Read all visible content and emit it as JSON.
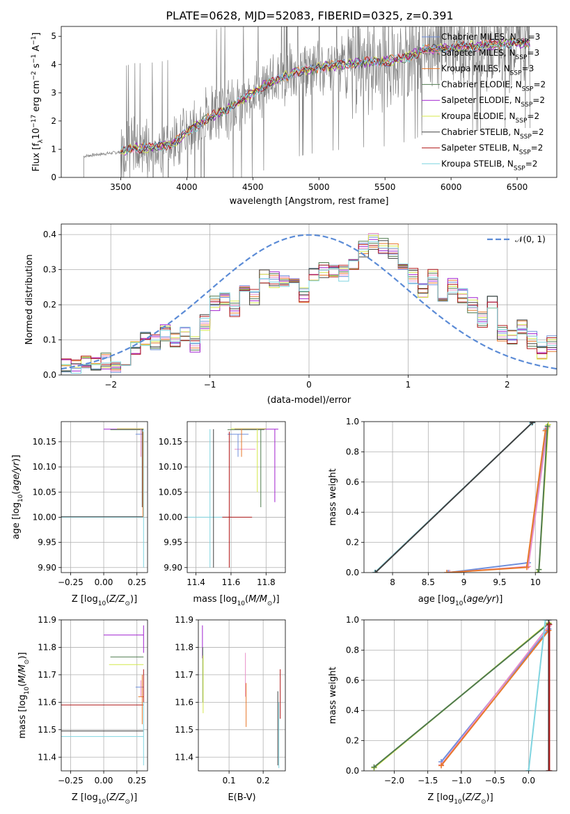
{
  "figure": {
    "title": "PLATE=0628, MJD=52083, FIBERID=0325, z=0.391"
  },
  "colors": {
    "Chabrier MILES": "#6f8fdc",
    "Salpeter MILES": "#e98fc8",
    "Kroupa MILES": "#e8782a",
    "Chabrier ELODIE": "#4f7a4f",
    "Salpeter ELODIE": "#a020d0",
    "Kroupa ELODIE": "#d4e84a",
    "Chabrier STELIB": "#404040",
    "Salpeter STELIB": "#b01818",
    "Kroupa STELIB": "#7fd4e0",
    "data": "#808080",
    "gaussian": "#5b8bd6",
    "grid": "#b0b0b0"
  },
  "chart_data": [
    {
      "id": "spectrum",
      "type": "line",
      "xlabel": "wavelength [Angstrom, rest frame]",
      "ylabel": "Flux [f_λ10^-17 erg cm^-2 s^-1 A^-1]",
      "xlim": [
        3050,
        6800
      ],
      "ylim": [
        0,
        5.35
      ],
      "xticks": [
        3500,
        4000,
        4500,
        5000,
        5500,
        6000,
        6500
      ],
      "yticks": [
        0,
        1,
        2,
        3,
        4,
        5
      ],
      "grid": false,
      "legend_position": "top-right",
      "legend": [
        {
          "name": "Chabrier MILES",
          "label": "Chabrier MILES, N",
          "sub": "SSP",
          "suffix": "=3"
        },
        {
          "name": "Salpeter MILES",
          "label": "Salpeter MILES, N",
          "sub": "SSP",
          "suffix": "=3"
        },
        {
          "name": "Kroupa MILES",
          "label": "Kroupa MILES, N",
          "sub": "SSP",
          "suffix": "=3"
        },
        {
          "name": "Chabrier ELODIE",
          "label": "Chabrier ELODIE, N",
          "sub": "SSP",
          "suffix": "=2"
        },
        {
          "name": "Salpeter ELODIE",
          "label": "Salpeter ELODIE, N",
          "sub": "SSP",
          "suffix": "=2"
        },
        {
          "name": "Kroupa ELODIE",
          "label": "Kroupa ELODIE, N",
          "sub": "SSP",
          "suffix": "=2"
        },
        {
          "name": "Chabrier STELIB",
          "label": "Chabrier STELIB, N",
          "sub": "SSP",
          "suffix": "=2"
        },
        {
          "name": "Salpeter STELIB",
          "label": "Salpeter STELIB, N",
          "sub": "SSP",
          "suffix": "=2"
        },
        {
          "name": "Kroupa STELIB",
          "label": "Kroupa STELIB, N",
          "sub": "SSP",
          "suffix": "=2"
        }
      ],
      "continuum": {
        "x": [
          3220,
          3300,
          3400,
          3500,
          3600,
          3700,
          3800,
          3900,
          4000,
          4100,
          4200,
          4300,
          4400,
          4500,
          4600,
          4700,
          4800,
          4900,
          5000,
          5100,
          5200,
          5300,
          5400,
          5500,
          5600,
          5700,
          5800,
          5900,
          6000,
          6100,
          6200,
          6300,
          6400,
          6500,
          6600
        ],
        "y": [
          0.75,
          0.8,
          0.85,
          0.9,
          1.05,
          1.05,
          1.1,
          1.2,
          1.6,
          1.9,
          2.2,
          2.4,
          2.7,
          3.0,
          3.3,
          3.5,
          3.7,
          3.8,
          3.9,
          3.95,
          4.0,
          4.05,
          4.1,
          4.1,
          4.2,
          4.3,
          4.55,
          4.55,
          4.6,
          4.65,
          4.65,
          4.7,
          4.75,
          4.75,
          4.75
        ]
      }
    },
    {
      "id": "residuals",
      "type": "line",
      "xlabel": "(data-model)/error",
      "ylabel": "Normed distribution",
      "xlim": [
        -2.5,
        2.5
      ],
      "ylim": [
        0,
        0.43
      ],
      "xticks": [
        -2,
        -1,
        0,
        1,
        2
      ],
      "yticks": [
        0.0,
        0.1,
        0.2,
        0.3,
        0.4
      ],
      "grid": true,
      "legend_position": "top-right",
      "gaussian_label": "𝒩(0, 1)",
      "hist_x": [
        -2.5,
        -2.4,
        -2.3,
        -2.2,
        -2.1,
        -2.0,
        -1.9,
        -1.8,
        -1.7,
        -1.6,
        -1.5,
        -1.4,
        -1.3,
        -1.2,
        -1.1,
        -1.0,
        -0.9,
        -0.8,
        -0.7,
        -0.6,
        -0.5,
        -0.4,
        -0.3,
        -0.2,
        -0.1,
        0.0,
        0.1,
        0.2,
        0.3,
        0.4,
        0.5,
        0.6,
        0.7,
        0.8,
        0.9,
        1.0,
        1.1,
        1.2,
        1.3,
        1.4,
        1.5,
        1.6,
        1.7,
        1.8,
        1.9,
        2.0,
        2.1,
        2.2,
        2.3,
        2.4
      ],
      "hist_y": [
        0.025,
        0.02,
        0.035,
        0.03,
        0.04,
        0.03,
        0.05,
        0.08,
        0.1,
        0.09,
        0.12,
        0.1,
        0.12,
        0.09,
        0.15,
        0.2,
        0.22,
        0.19,
        0.25,
        0.22,
        0.28,
        0.27,
        0.27,
        0.26,
        0.23,
        0.29,
        0.3,
        0.3,
        0.29,
        0.32,
        0.36,
        0.38,
        0.37,
        0.35,
        0.3,
        0.28,
        0.24,
        0.28,
        0.22,
        0.25,
        0.23,
        0.2,
        0.16,
        0.2,
        0.12,
        0.11,
        0.14,
        0.1,
        0.07,
        0.09
      ]
    },
    {
      "id": "age-vs-Z",
      "type": "scatter",
      "xlabel": "Z [log10(Z/Z⊙)]",
      "ylabel": "age  [log10(age/yr)]",
      "xlim": [
        -0.32,
        0.33
      ],
      "ylim": [
        9.89,
        10.19
      ],
      "xticks": [
        -0.25,
        0.0,
        0.25
      ],
      "xticklabels": [
        "−0.25",
        "0.00",
        "0.25"
      ],
      "yticks": [
        9.9,
        9.95,
        10.0,
        10.05,
        10.1,
        10.15
      ],
      "grid": true
    },
    {
      "id": "age-vs-mass",
      "type": "scatter",
      "xlabel": "mass [log10(M/M⊙)]",
      "ylabel": "",
      "xlim": [
        11.35,
        11.91
      ],
      "ylim": [
        9.89,
        10.19
      ],
      "xticks": [
        11.4,
        11.6,
        11.8
      ],
      "yticks": [
        9.9,
        9.95,
        10.0,
        10.05,
        10.1,
        10.15
      ],
      "grid": true
    },
    {
      "id": "weight-vs-age",
      "type": "line",
      "xlabel": "age  [log10(age/yr)]",
      "ylabel": "mass weight",
      "xlim": [
        7.6,
        10.3
      ],
      "ylim": [
        0.0,
        1.0
      ],
      "xticks": [
        8.0,
        8.5,
        9.0,
        9.5,
        10.0
      ],
      "yticks": [
        0.0,
        0.2,
        0.4,
        0.6,
        0.8,
        1.0
      ],
      "grid": true
    },
    {
      "id": "mass-vs-Z",
      "type": "scatter",
      "xlabel": "Z [log10(Z/Z⊙)]",
      "ylabel": "mass [log10(M/M⊙)]",
      "xlim": [
        -0.32,
        0.33
      ],
      "ylim": [
        11.35,
        11.9
      ],
      "xticks": [
        -0.25,
        0.0,
        0.25
      ],
      "xticklabels": [
        "−0.25",
        "0.00",
        "0.25"
      ],
      "yticks": [
        11.4,
        11.5,
        11.6,
        11.7,
        11.8,
        11.9
      ],
      "grid": true
    },
    {
      "id": "mass-vs-EBV",
      "type": "scatter",
      "xlabel": "E(B-V)",
      "ylabel": "",
      "xlim": [
        0.01,
        0.265
      ],
      "ylim": [
        11.35,
        11.9
      ],
      "xticks": [
        0.1,
        0.2
      ],
      "yticks": [
        11.4,
        11.5,
        11.6,
        11.7,
        11.8,
        11.9
      ],
      "grid": true
    },
    {
      "id": "weight-vs-Z",
      "type": "line",
      "xlabel": "Z [log10(Z/Z⊙)]",
      "ylabel": "mass weight",
      "xlim": [
        -2.45,
        0.42
      ],
      "ylim": [
        0.0,
        1.0
      ],
      "xticks": [
        -2.0,
        -1.5,
        -1.0,
        -0.5,
        0.0
      ],
      "xticklabels": [
        "−2.0",
        "−1.5",
        "−1.0",
        "−0.5",
        "0.0"
      ],
      "yticks": [
        0.0,
        0.2,
        0.4,
        0.6,
        0.8,
        1.0
      ],
      "grid": true
    }
  ]
}
